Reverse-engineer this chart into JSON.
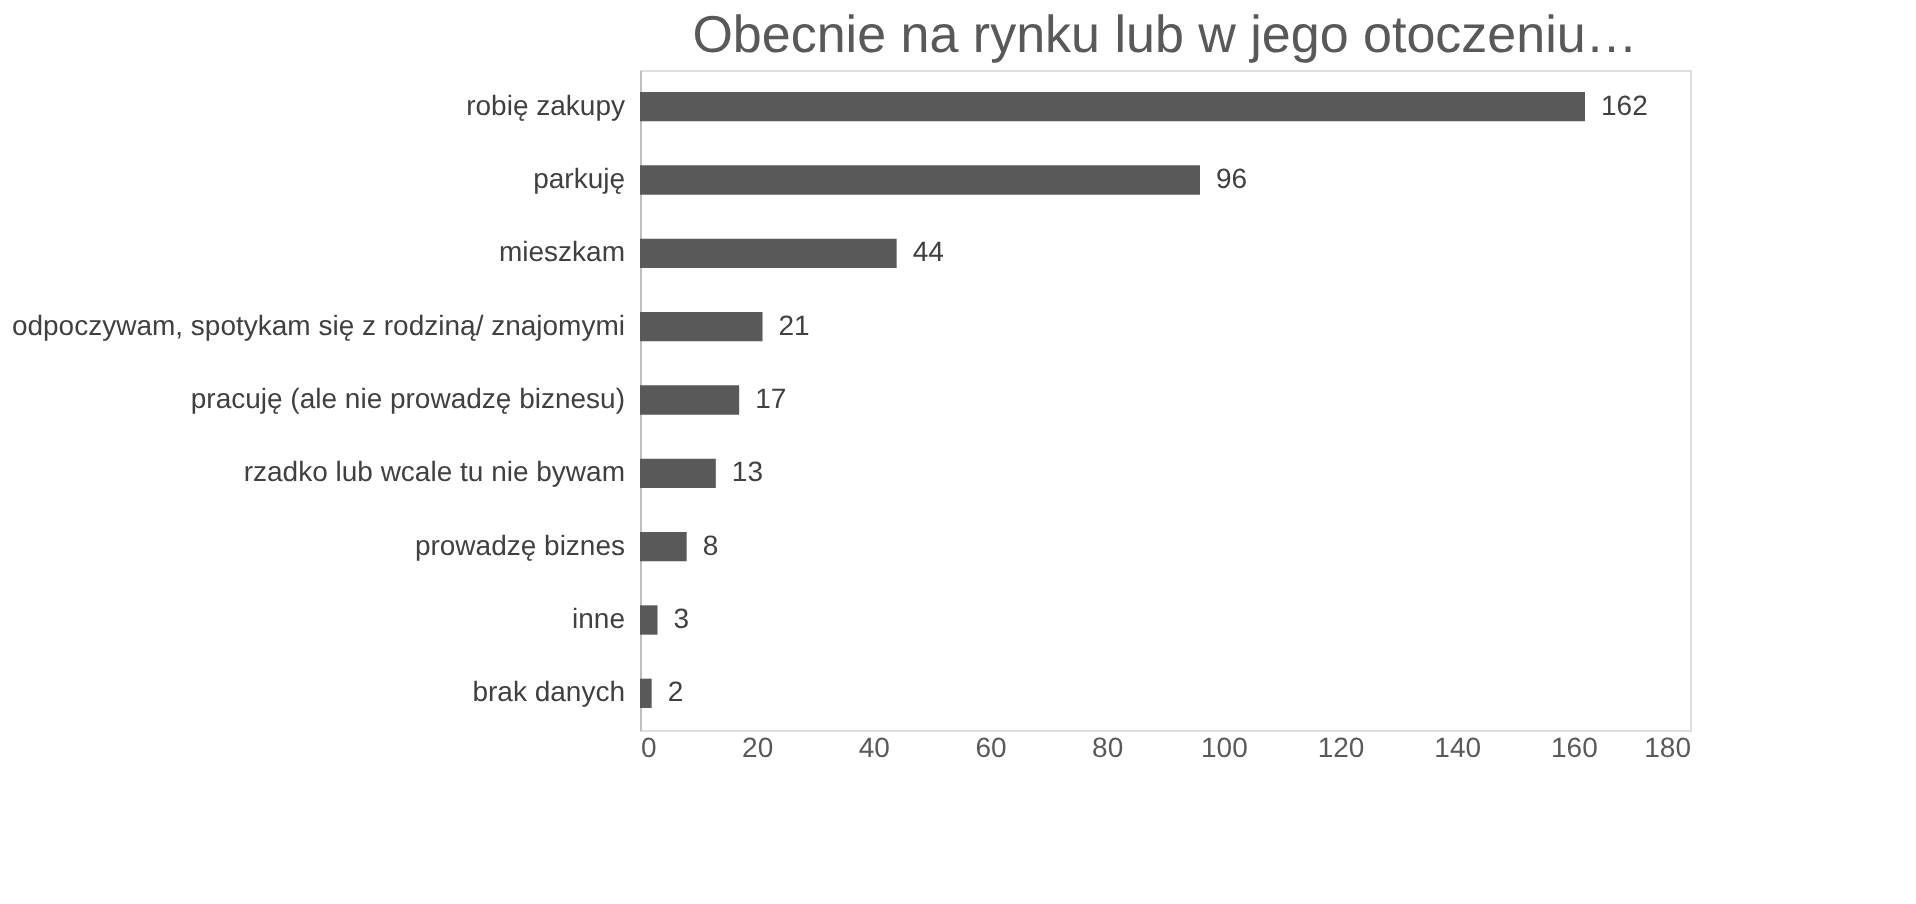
{
  "chart_data": {
    "type": "bar",
    "orientation": "horizontal",
    "title": "Obecnie na rynku lub w jego otoczeniu…",
    "categories": [
      "robię zakupy",
      "parkuję",
      "mieszkam",
      "odpoczywam, spotykam się z rodziną/ znajomymi",
      "pracuję (ale nie prowadzę biznesu)",
      "rzadko lub wcale tu nie bywam ",
      "prowadzę biznes",
      "inne",
      "brak danych"
    ],
    "values": [
      162,
      96,
      44,
      21,
      17,
      13,
      8,
      3,
      2
    ],
    "color": "#595959",
    "xlim": [
      0,
      180
    ],
    "xticks": [
      0,
      20,
      40,
      60,
      80,
      100,
      120,
      140,
      160,
      180
    ],
    "data_labels": true,
    "grid": false
  }
}
